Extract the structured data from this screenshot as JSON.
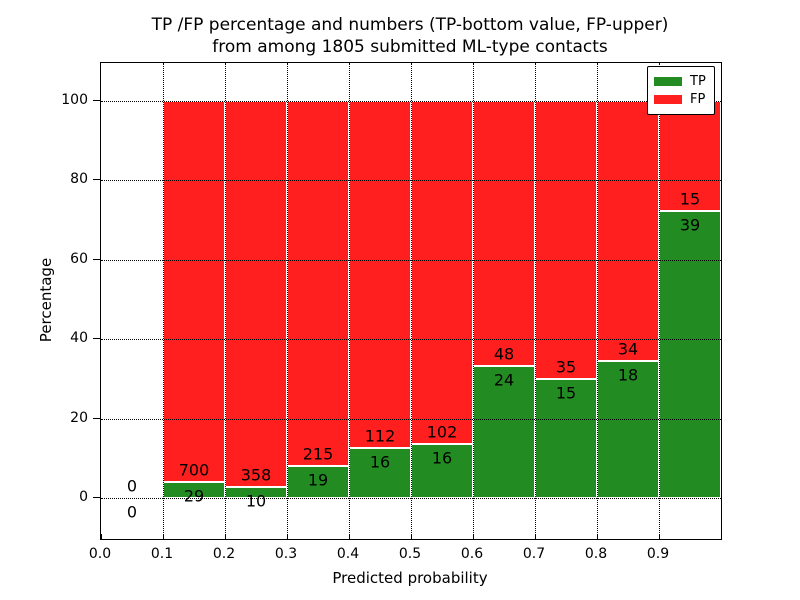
{
  "figure": {
    "title_line1": "TP /FP percentage and numbers (TP-bottom value, FP-upper)",
    "title_line2": "from among 1805 submitted ML-type contacts",
    "xlabel": "Predicted probability",
    "ylabel": "Percentage",
    "legend": {
      "tp_label": "TP",
      "fp_label": "FP"
    },
    "colors": {
      "tp_green": "#228b22",
      "fp_red": "#ff1f1f",
      "grid": "#000000",
      "background": "#ffffff"
    }
  },
  "chart_data": {
    "type": "bar",
    "stacked": true,
    "normalized_to_percent": true,
    "title": "TP /FP percentage and numbers (TP-bottom value, FP-upper)\nfrom among 1805 submitted ML-type contacts",
    "xlabel": "Predicted probability",
    "ylabel": "Percentage",
    "total_contacts": 1805,
    "xlim": [
      0.0,
      1.0
    ],
    "ylim": [
      -10.5,
      110
    ],
    "x_ticks": [
      "0.0",
      "0.1",
      "0.2",
      "0.3",
      "0.4",
      "0.5",
      "0.6",
      "0.7",
      "0.8",
      "0.9"
    ],
    "y_ticks": [
      0,
      20,
      40,
      60,
      80,
      100
    ],
    "grid": "dotted",
    "legend_position": "upper right",
    "series": [
      {
        "name": "TP",
        "color": "#228b22",
        "position": "bottom"
      },
      {
        "name": "FP",
        "color": "#ff1f1f",
        "position": "top"
      }
    ],
    "bins": [
      {
        "x_start": 0.0,
        "x_end": 0.1,
        "tp_count": 0,
        "fp_count": 0,
        "tp_pct": 0.0,
        "fp_pct": 0.0,
        "has_bar": false
      },
      {
        "x_start": 0.1,
        "x_end": 0.2,
        "tp_count": 29,
        "fp_count": 700,
        "tp_pct": 3.98,
        "fp_pct": 96.02,
        "has_bar": true
      },
      {
        "x_start": 0.2,
        "x_end": 0.3,
        "tp_count": 10,
        "fp_count": 358,
        "tp_pct": 2.72,
        "fp_pct": 97.28,
        "has_bar": true
      },
      {
        "x_start": 0.3,
        "x_end": 0.4,
        "tp_count": 19,
        "fp_count": 215,
        "tp_pct": 8.12,
        "fp_pct": 91.88,
        "has_bar": true
      },
      {
        "x_start": 0.4,
        "x_end": 0.5,
        "tp_count": 16,
        "fp_count": 112,
        "tp_pct": 12.5,
        "fp_pct": 87.5,
        "has_bar": true
      },
      {
        "x_start": 0.5,
        "x_end": 0.6,
        "tp_count": 16,
        "fp_count": 102,
        "tp_pct": 13.56,
        "fp_pct": 86.44,
        "has_bar": true
      },
      {
        "x_start": 0.6,
        "x_end": 0.7,
        "tp_count": 24,
        "fp_count": 48,
        "tp_pct": 33.33,
        "fp_pct": 66.67,
        "has_bar": true
      },
      {
        "x_start": 0.7,
        "x_end": 0.8,
        "tp_count": 15,
        "fp_count": 35,
        "tp_pct": 30.0,
        "fp_pct": 70.0,
        "has_bar": true
      },
      {
        "x_start": 0.8,
        "x_end": 0.9,
        "tp_count": 18,
        "fp_count": 34,
        "tp_pct": 34.62,
        "fp_pct": 65.38,
        "has_bar": true
      },
      {
        "x_start": 0.9,
        "x_end": 1.0,
        "tp_count": 39,
        "fp_count": 15,
        "tp_pct": 72.22,
        "fp_pct": 27.78,
        "has_bar": true
      }
    ]
  }
}
